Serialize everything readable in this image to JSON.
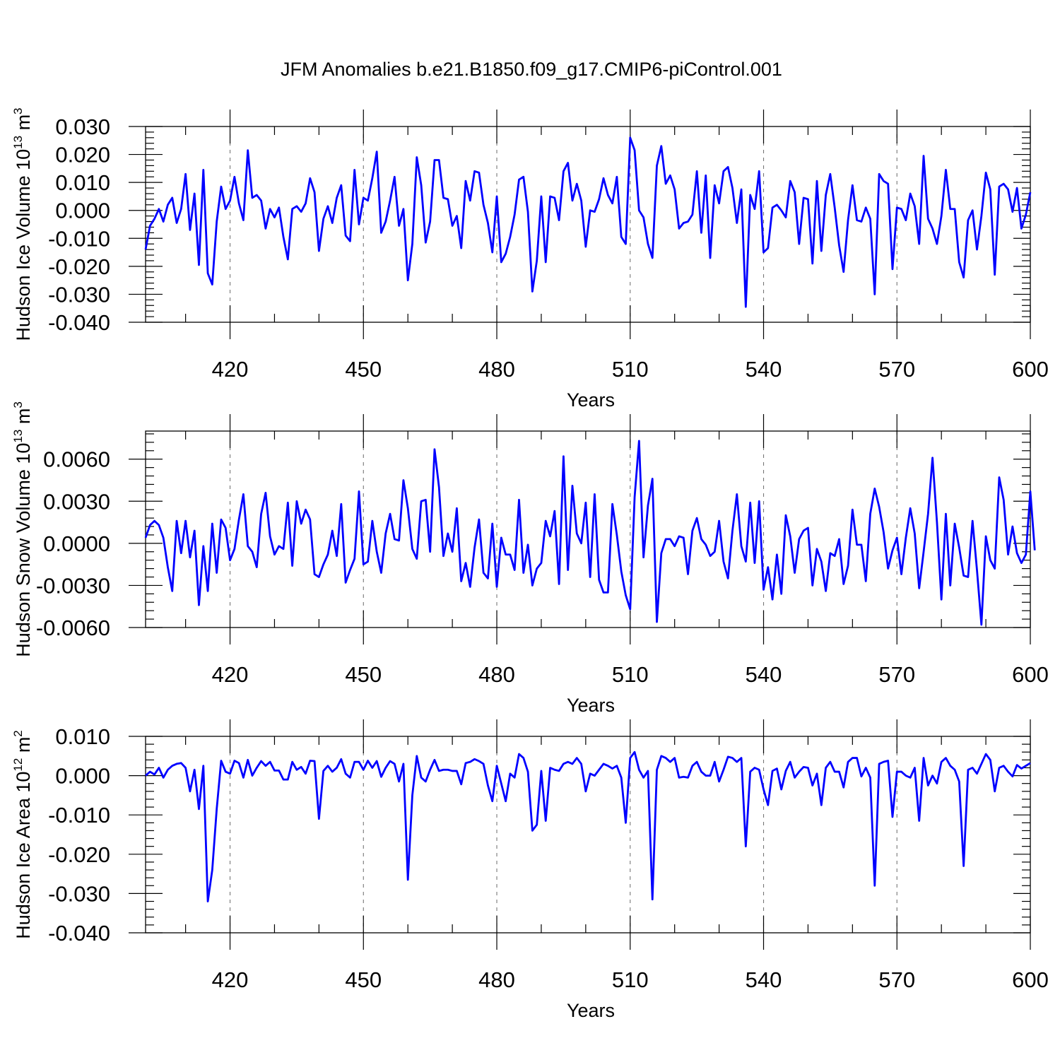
{
  "figure_title": "JFM Anomalies b.e21.B1850.f09_g17.CMIP6-piControl.001",
  "colors": {
    "series": "#0000ff",
    "grid": "#777777",
    "axes": "#000000"
  },
  "chart_data": [
    {
      "type": "line",
      "ylabel_text": "Hudson Ice Volume 10",
      "ylabel_exp": "13",
      "ylabel_unit": " m",
      "ylabel_unit_exp": "3",
      "xlabel": "Years",
      "xlim": [
        401,
        600
      ],
      "ylim": [
        -0.04,
        0.03
      ],
      "grid": "vertical dashed at major x ticks",
      "xticks": [
        420,
        450,
        480,
        510,
        540,
        570,
        600
      ],
      "xtick_labels": [
        "420",
        "450",
        "480",
        "510",
        "540",
        "570",
        "600"
      ],
      "yticks": [
        -0.04,
        -0.03,
        -0.02,
        -0.01,
        0.0,
        0.01,
        0.02,
        0.03
      ],
      "ytick_labels": [
        "-0.040",
        "-0.030",
        "-0.020",
        "-0.010",
        "0.000",
        "0.010",
        "0.020",
        "0.030"
      ],
      "yminor_step": 0.002,
      "x_start": 401,
      "series": [
        {
          "values": [
            -0.014,
            -0.0055,
            -0.003,
            0.0005,
            -0.004,
            0.002,
            0.0045,
            -0.0045,
            0.0005,
            0.013,
            -0.007,
            0.006,
            -0.0195,
            0.0145,
            -0.0225,
            -0.0265,
            -0.004,
            0.0085,
            0.0005,
            0.0035,
            0.012,
            0.0025,
            -0.0035,
            0.0215,
            0.0045,
            0.0055,
            0.0035,
            -0.0065,
            0.0005,
            -0.0025,
            0.001,
            -0.0095,
            -0.0175,
            0.0005,
            0.0015,
            -0.0005,
            0.0025,
            0.0115,
            0.0065,
            -0.0145,
            -0.003,
            0.0015,
            -0.0045,
            0.0045,
            0.009,
            -0.009,
            -0.011,
            0.0145,
            -0.005,
            0.0045,
            0.0035,
            0.0115,
            0.021,
            -0.008,
            -0.004,
            0.0035,
            0.012,
            -0.0055,
            0.0005,
            -0.025,
            -0.012,
            0.019,
            0.009,
            -0.0115,
            -0.004,
            0.018,
            0.018,
            0.0045,
            0.004,
            -0.0055,
            -0.002,
            -0.0135,
            0.0105,
            0.0035,
            0.014,
            0.0135,
            0.002,
            -0.0045,
            -0.015,
            0.005,
            -0.0185,
            -0.0155,
            -0.0095,
            -0.0015,
            0.011,
            0.012,
            -0.0005,
            -0.029,
            -0.018,
            0.005,
            -0.0185,
            0.005,
            0.0045,
            -0.0035,
            0.014,
            0.017,
            0.0035,
            0.0095,
            0.0035,
            -0.013,
            0.0,
            -0.0005,
            0.004,
            0.0115,
            0.0055,
            0.0025,
            0.012,
            -0.0095,
            -0.012,
            0.026,
            0.0215,
            0.0,
            -0.0025,
            -0.012,
            -0.017,
            0.016,
            0.023,
            0.0095,
            0.0125,
            0.0075,
            -0.0065,
            -0.0045,
            -0.004,
            -0.0015,
            0.014,
            -0.008,
            0.0125,
            -0.017,
            0.009,
            0.0025,
            0.014,
            0.0155,
            0.008,
            -0.0045,
            0.0075,
            -0.0345,
            0.0055,
            0.0005,
            0.014,
            -0.015,
            -0.0135,
            0.001,
            0.002,
            0.0,
            -0.0025,
            0.0105,
            0.0065,
            -0.012,
            0.0045,
            0.004,
            -0.019,
            0.0105,
            -0.0145,
            0.0055,
            0.013,
            0.001,
            -0.0125,
            -0.022,
            -0.0035,
            0.009,
            -0.0035,
            -0.004,
            0.001,
            -0.003,
            -0.03,
            0.013,
            0.0105,
            0.0095,
            -0.021,
            0.001,
            0.0005,
            -0.0035,
            0.006,
            0.0015,
            -0.012,
            0.0195,
            -0.003,
            -0.0065,
            -0.012,
            -0.002,
            0.0145,
            0.0005,
            0.0005,
            -0.0185,
            -0.024,
            -0.0035,
            0.0,
            -0.014,
            -0.002,
            0.0135,
            0.0075,
            -0.023,
            0.0085,
            0.0095,
            0.0075,
            -0.0005,
            0.008,
            -0.0065,
            -0.0015,
            0.0065
          ]
        }
      ]
    },
    {
      "type": "line",
      "ylabel_text": "Hudson Snow Volume 10",
      "ylabel_exp": "13",
      "ylabel_unit": " m",
      "ylabel_unit_exp": "3",
      "xlabel": "Years",
      "xlim": [
        401,
        600
      ],
      "ylim": [
        -0.006,
        0.008
      ],
      "grid": "vertical dashed at major x ticks",
      "xticks": [
        420,
        450,
        480,
        510,
        540,
        570,
        600
      ],
      "xtick_labels": [
        "420",
        "450",
        "480",
        "510",
        "540",
        "570",
        "600"
      ],
      "yticks": [
        -0.006,
        -0.003,
        0.0,
        0.003,
        0.006
      ],
      "ytick_labels": [
        "-0.0060",
        "-0.0030",
        "0.0000",
        "0.0030",
        "0.0060"
      ],
      "yminor_step": 0.0006,
      "x_start": 401,
      "series": [
        {
          "values": [
            0.0004,
            0.0013,
            0.0016,
            0.0013,
            0.0004,
            -0.0017,
            -0.0034,
            0.0016,
            -0.0007,
            0.0016,
            -0.001,
            0.0009,
            -0.0044,
            -0.0002,
            -0.0034,
            0.0014,
            -0.0021,
            0.0017,
            0.0011,
            -0.0012,
            -0.0004,
            0.0017,
            0.0035,
            -0.0002,
            -0.0006,
            -0.0017,
            0.0021,
            0.0036,
            0.0005,
            -0.0008,
            -0.0002,
            -0.0004,
            0.0029,
            -0.0016,
            0.003,
            0.0014,
            0.0024,
            0.0017,
            -0.0022,
            -0.0024,
            -0.0015,
            -0.0008,
            0.0009,
            -0.0009,
            0.0028,
            -0.0028,
            -0.0019,
            -0.0011,
            0.0037,
            -0.0015,
            -0.0013,
            0.0016,
            -0.0006,
            -0.0021,
            0.0007,
            0.0021,
            0.0003,
            0.0002,
            0.0045,
            0.0025,
            -0.0004,
            -0.0011,
            0.003,
            0.0031,
            -0.0006,
            0.0067,
            0.004,
            -0.0009,
            0.0007,
            -0.0006,
            0.0025,
            -0.0027,
            -0.0014,
            -0.0031,
            -0.0003,
            0.0017,
            -0.0021,
            -0.0025,
            0.0014,
            -0.0031,
            0.0004,
            -0.0008,
            -0.0008,
            -0.0019,
            0.0031,
            -0.0021,
            -0.0001,
            -0.003,
            -0.0018,
            -0.0014,
            0.0016,
            0.0005,
            0.0023,
            -0.0029,
            0.0062,
            -0.0019,
            0.0041,
            0.0007,
            0.0,
            0.0029,
            -0.0024,
            0.0035,
            -0.0026,
            -0.0035,
            -0.0035,
            0.0028,
            0.0006,
            -0.002,
            -0.0037,
            -0.0047,
            0.0033,
            0.0073,
            -0.001,
            0.0027,
            0.0046,
            -0.0056,
            -0.0007,
            0.0003,
            0.0003,
            -0.0002,
            0.0005,
            0.0004,
            -0.0022,
            0.0009,
            0.0018,
            0.0003,
            -0.0001,
            -0.0009,
            -0.0006,
            0.0016,
            -0.0013,
            -0.0025,
            0.0009,
            0.0035,
            -0.0002,
            -0.0013,
            0.0029,
            -0.0014,
            0.003,
            -0.0033,
            -0.0017,
            -0.004,
            -0.0008,
            -0.0036,
            0.002,
            0.0005,
            -0.0021,
            0.0003,
            0.0009,
            0.0011,
            -0.003,
            -0.0004,
            -0.0013,
            -0.0034,
            -0.0007,
            -0.0009,
            0.0003,
            -0.0029,
            -0.0016,
            0.0024,
            -0.0001,
            -0.0001,
            -0.0027,
            0.0021,
            0.0039,
            0.0026,
            0.0008,
            -0.0018,
            -0.0005,
            0.0004,
            -0.0022,
            0.0004,
            0.0025,
            0.0007,
            -0.0032,
            -0.0006,
            0.0021,
            0.0061,
            0.0015,
            -0.004,
            0.0021,
            -0.003,
            0.0014,
            -0.0003,
            -0.0023,
            -0.0024,
            0.0016,
            -0.0019,
            -0.0058,
            0.0005,
            -0.0012,
            -0.0018,
            0.0047,
            0.0031,
            -0.0008,
            0.0012,
            -0.0007,
            -0.0014,
            -0.0008,
            0.0037,
            -0.0005
          ]
        }
      ]
    },
    {
      "type": "line",
      "ylabel_text": "Hudson Ice Area 10",
      "ylabel_exp": "12",
      "ylabel_unit": " m",
      "ylabel_unit_exp": "2",
      "xlabel": "Years",
      "xlim": [
        401,
        600
      ],
      "ylim": [
        -0.04,
        0.01
      ],
      "grid": "vertical dashed at major x ticks",
      "xticks": [
        420,
        450,
        480,
        510,
        540,
        570,
        600
      ],
      "xtick_labels": [
        "420",
        "450",
        "480",
        "510",
        "540",
        "570",
        "600"
      ],
      "yticks": [
        -0.04,
        -0.03,
        -0.02,
        -0.01,
        0.0,
        0.01
      ],
      "ytick_labels": [
        "-0.040",
        "-0.030",
        "-0.020",
        "-0.010",
        "0.000",
        "0.010"
      ],
      "yminor_step": 0.002,
      "x_start": 401,
      "series": [
        {
          "values": [
            0.0,
            0.001,
            0.0003,
            0.002,
            -0.0005,
            0.0015,
            0.0025,
            0.003,
            0.0032,
            0.002,
            -0.004,
            0.0015,
            -0.0085,
            0.0025,
            -0.032,
            -0.024,
            -0.0085,
            0.0038,
            0.001,
            0.0005,
            0.0038,
            0.0032,
            -0.0005,
            0.004,
            0.0,
            0.002,
            0.0037,
            0.0025,
            0.0035,
            0.0013,
            0.0013,
            -0.001,
            -0.001,
            0.0035,
            0.0015,
            0.0022,
            0.0005,
            0.0038,
            0.0037,
            -0.011,
            0.0012,
            0.0025,
            0.001,
            0.002,
            0.0042,
            0.0005,
            -0.0005,
            0.0035,
            0.0035,
            0.0015,
            0.0038,
            0.002,
            0.0037,
            -0.0003,
            0.002,
            0.0037,
            0.003,
            -0.0015,
            0.003,
            -0.0265,
            -0.005,
            0.005,
            -0.0005,
            -0.0015,
            0.0015,
            0.004,
            0.0012,
            0.0015,
            0.0015,
            0.0012,
            0.0012,
            -0.0022,
            0.0032,
            0.0035,
            0.0042,
            0.0037,
            0.003,
            -0.0025,
            -0.0065,
            0.0025,
            -0.002,
            -0.0065,
            0.0005,
            -0.0005,
            0.0055,
            0.0045,
            0.001,
            -0.014,
            -0.0125,
            0.0012,
            -0.0115,
            0.002,
            0.0015,
            0.0012,
            0.003,
            0.0035,
            0.003,
            0.0045,
            0.003,
            -0.004,
            0.0005,
            0.0,
            0.0015,
            0.003,
            0.0025,
            0.0018,
            0.0025,
            -0.0005,
            -0.012,
            0.0045,
            0.006,
            0.0015,
            -0.0005,
            0.0012,
            -0.0315,
            0.0015,
            0.005,
            0.0045,
            0.0035,
            0.0045,
            -0.0005,
            -0.0003,
            -0.0005,
            0.0025,
            0.0035,
            0.001,
            0.0,
            0.0,
            0.0035,
            -0.0015,
            0.0015,
            0.0048,
            0.0045,
            0.0035,
            0.0045,
            -0.018,
            0.001,
            0.002,
            0.0015,
            -0.0035,
            -0.0075,
            0.0012,
            0.0018,
            -0.0035,
            0.0012,
            0.0035,
            -0.0005,
            0.001,
            0.0022,
            0.002,
            -0.0025,
            0.0005,
            -0.0075,
            0.002,
            0.0035,
            0.001,
            0.001,
            -0.003,
            0.0035,
            0.0045,
            0.0045,
            -0.0002,
            0.002,
            -0.0005,
            -0.028,
            0.003,
            0.0035,
            0.0038,
            -0.0105,
            0.001,
            0.001,
            0.0,
            -0.0005,
            0.002,
            -0.0115,
            0.0045,
            -0.0025,
            0.0,
            -0.002,
            0.0035,
            0.0045,
            0.0025,
            0.0015,
            -0.0015,
            -0.023,
            0.0015,
            0.002,
            0.0005,
            0.003,
            0.0055,
            0.004,
            -0.004,
            0.002,
            0.0025,
            0.001,
            -0.0002,
            0.0027,
            0.0018,
            0.0025,
            0.0032
          ]
        }
      ]
    }
  ]
}
